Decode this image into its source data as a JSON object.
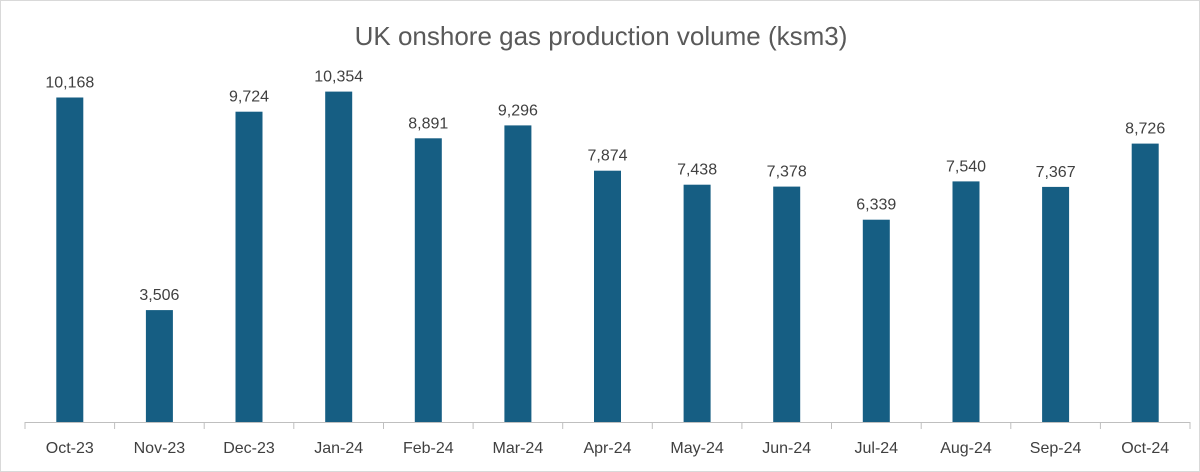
{
  "chart_data": {
    "type": "bar",
    "title": "UK onshore gas production volume (ksm3)",
    "xlabel": "",
    "ylabel": "",
    "categories": [
      "Oct-23",
      "Nov-23",
      "Dec-23",
      "Jan-24",
      "Feb-24",
      "Mar-24",
      "Apr-24",
      "May-24",
      "Jun-24",
      "Jul-24",
      "Aug-24",
      "Sep-24",
      "Oct-24"
    ],
    "values": [
      10168,
      3506,
      9724,
      10354,
      8891,
      9296,
      7874,
      7438,
      7378,
      6339,
      7540,
      7367,
      8726
    ],
    "data_labels": [
      "10,168",
      "3,506",
      "9,724",
      "10,354",
      "8,891",
      "9,296",
      "7,874",
      "7,438",
      "7,378",
      "6,339",
      "7,540",
      "7,367",
      "8,726"
    ],
    "ylim": [
      0,
      11000
    ],
    "grid": false,
    "legend": "none",
    "colors": {
      "bar": "#165e83",
      "axis": "#bfbfbf",
      "text": "#404040",
      "title": "#595959"
    }
  }
}
